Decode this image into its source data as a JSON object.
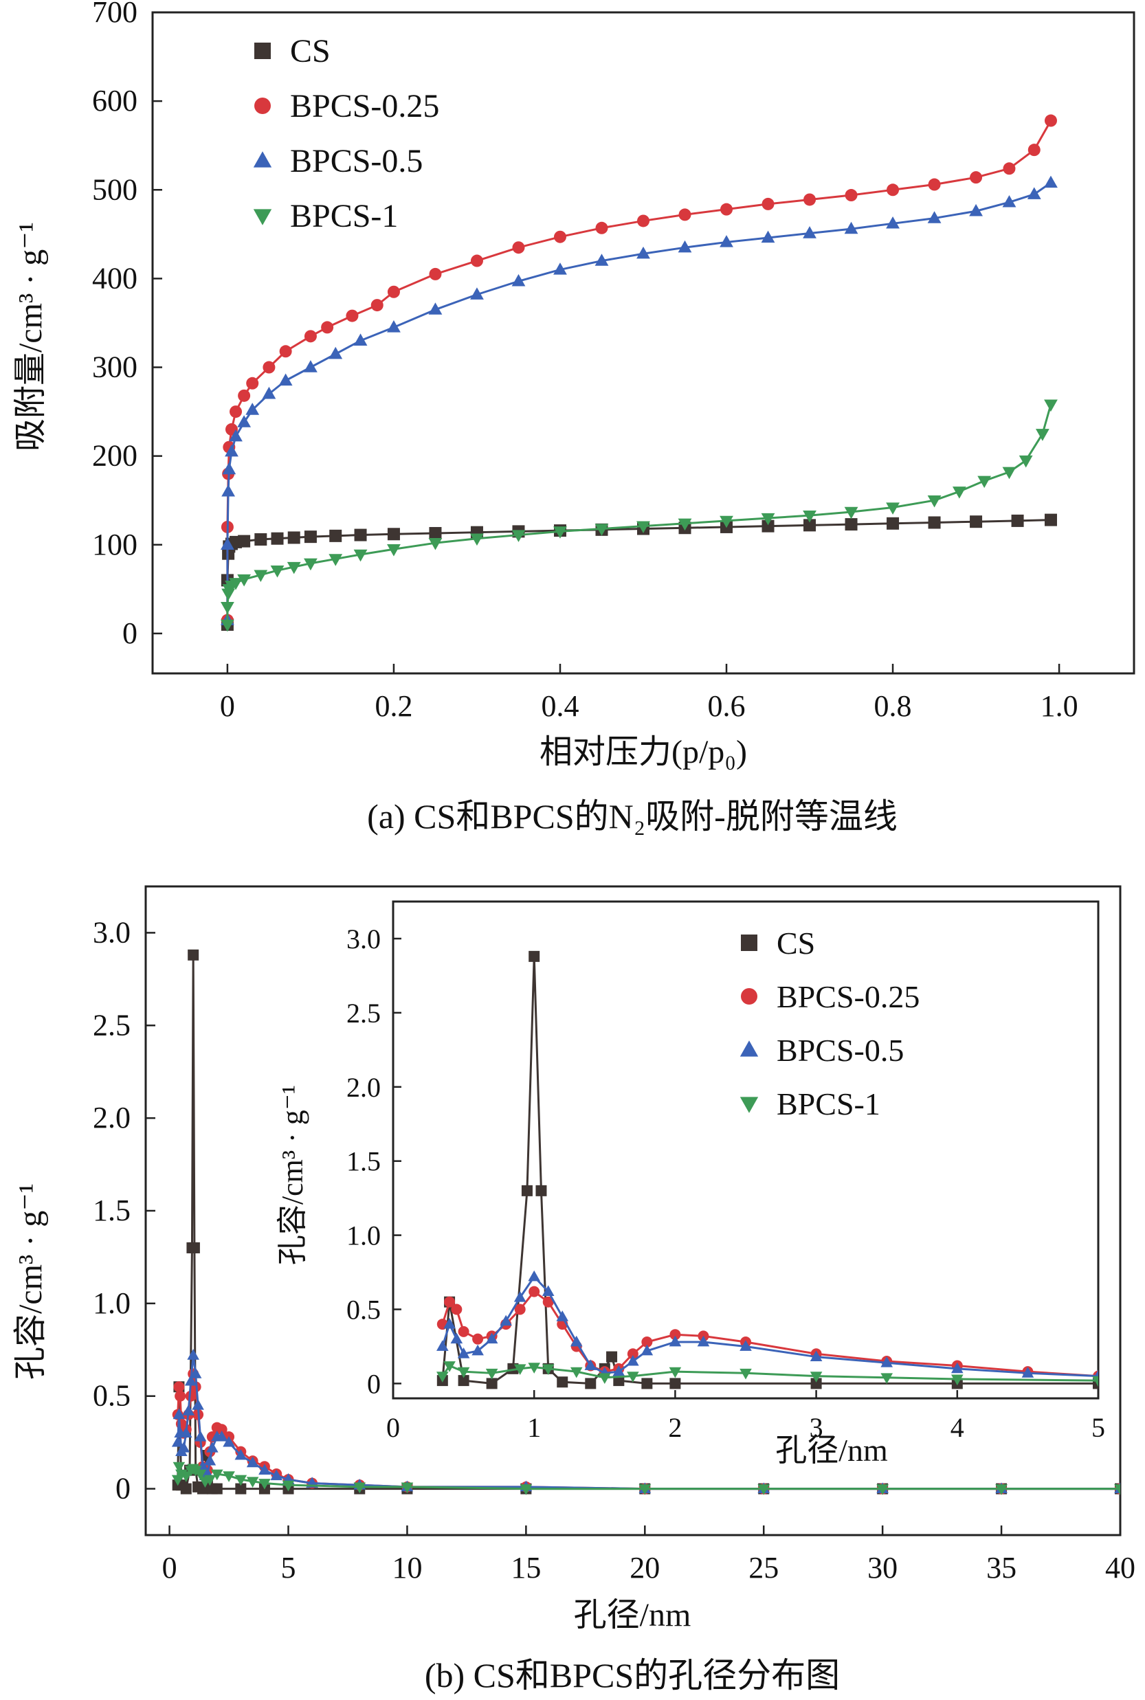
{
  "colors": {
    "CS": "#3e3532",
    "BPCS-0.25": "#d8383d",
    "BPCS-0.5": "#3b63b8",
    "BPCS-1": "#3d9b56"
  },
  "chart_data": [
    {
      "type": "line",
      "title": "",
      "caption": "(a) CS和BPCS的N₂吸附-脱附等温线",
      "xlabel": "相对压力(p/p₀)",
      "ylabel": "吸附量/cm³ · g⁻¹",
      "xlim": [
        -0.09,
        1.09
      ],
      "ylim": [
        -45,
        700
      ],
      "xticks": [
        0,
        0.2,
        0.4,
        0.6,
        0.8,
        1.0
      ],
      "xtick_labels": [
        "0",
        "0.2",
        "0.4",
        "0.6",
        "0.8",
        "1.0"
      ],
      "yticks": [
        0,
        100,
        200,
        300,
        400,
        500,
        600,
        700
      ],
      "ytick_labels": [
        "0",
        "100",
        "200",
        "300",
        "400",
        "500",
        "600",
        "700"
      ],
      "legend": [
        "CS",
        "BPCS-0.25",
        "BPCS-0.5",
        "BPCS-1"
      ],
      "legend_position": "top-left",
      "series": [
        {
          "name": "CS",
          "marker": "square",
          "x": [
            0.0,
            0.0,
            0.001,
            0.002,
            0.005,
            0.01,
            0.02,
            0.04,
            0.06,
            0.08,
            0.1,
            0.13,
            0.16,
            0.2,
            0.25,
            0.3,
            0.35,
            0.4,
            0.45,
            0.5,
            0.55,
            0.6,
            0.65,
            0.7,
            0.75,
            0.8,
            0.85,
            0.9,
            0.95,
            0.99
          ],
          "y": [
            10,
            60,
            90,
            98,
            101,
            103,
            104,
            106,
            107,
            108,
            109,
            110,
            111,
            112,
            113,
            114,
            115,
            116,
            117,
            118,
            119,
            120,
            121,
            122,
            123,
            124,
            125,
            126,
            127,
            128
          ]
        },
        {
          "name": "BPCS-0.25",
          "marker": "circle",
          "x": [
            0.0,
            0.0,
            0.001,
            0.002,
            0.005,
            0.01,
            0.02,
            0.03,
            0.05,
            0.07,
            0.1,
            0.12,
            0.15,
            0.18,
            0.2,
            0.25,
            0.3,
            0.35,
            0.4,
            0.45,
            0.5,
            0.55,
            0.6,
            0.65,
            0.7,
            0.75,
            0.8,
            0.85,
            0.9,
            0.94,
            0.97,
            0.99
          ],
          "y": [
            15,
            120,
            180,
            210,
            230,
            250,
            268,
            282,
            300,
            318,
            335,
            345,
            358,
            370,
            385,
            405,
            420,
            435,
            447,
            457,
            465,
            472,
            478,
            484,
            489,
            494,
            500,
            506,
            514,
            524,
            545,
            578
          ]
        },
        {
          "name": "BPCS-0.5",
          "marker": "triangle-up",
          "x": [
            0.0,
            0.0,
            0.001,
            0.002,
            0.005,
            0.01,
            0.02,
            0.03,
            0.05,
            0.07,
            0.1,
            0.13,
            0.16,
            0.2,
            0.25,
            0.3,
            0.35,
            0.4,
            0.45,
            0.5,
            0.55,
            0.6,
            0.65,
            0.7,
            0.75,
            0.8,
            0.85,
            0.9,
            0.94,
            0.97,
            0.99
          ],
          "y": [
            15,
            100,
            160,
            185,
            205,
            222,
            238,
            252,
            270,
            285,
            300,
            315,
            330,
            345,
            365,
            382,
            397,
            410,
            420,
            428,
            435,
            441,
            446,
            451,
            456,
            462,
            468,
            476,
            486,
            495,
            508
          ]
        },
        {
          "name": "BPCS-1",
          "marker": "triangle-down",
          "x": [
            0.0,
            0.0,
            0.001,
            0.002,
            0.005,
            0.01,
            0.02,
            0.04,
            0.06,
            0.08,
            0.1,
            0.13,
            0.16,
            0.2,
            0.25,
            0.3,
            0.35,
            0.4,
            0.45,
            0.5,
            0.55,
            0.6,
            0.65,
            0.7,
            0.75,
            0.8,
            0.85,
            0.88,
            0.91,
            0.94,
            0.96,
            0.98,
            0.99
          ],
          "y": [
            10,
            30,
            45,
            50,
            54,
            57,
            61,
            66,
            71,
            75,
            79,
            84,
            89,
            95,
            102,
            107,
            111,
            115,
            118,
            121,
            124,
            127,
            130,
            133,
            137,
            142,
            150,
            160,
            172,
            182,
            195,
            225,
            258
          ]
        }
      ]
    },
    {
      "type": "line",
      "title": "",
      "caption": "(b) CS和BPCS的孔径分布图",
      "xlabel": "孔径/nm",
      "ylabel": "孔容/cm³ · g⁻¹",
      "xlim": [
        -1,
        40
      ],
      "ylim": [
        -0.25,
        3.25
      ],
      "xticks": [
        0,
        5,
        10,
        15,
        20,
        25,
        30,
        35,
        40
      ],
      "xtick_labels": [
        "0",
        "5",
        "10",
        "15",
        "20",
        "25",
        "30",
        "35",
        "40"
      ],
      "yticks": [
        0,
        0.5,
        1.0,
        1.5,
        2.0,
        2.5,
        3.0
      ],
      "ytick_labels": [
        "0",
        "0.5",
        "1.0",
        "1.5",
        "2.0",
        "2.5",
        "3.0"
      ],
      "legend": [
        "CS",
        "BPCS-0.25",
        "BPCS-0.5",
        "BPCS-1"
      ],
      "legend_position": "inset top-right",
      "series": [
        {
          "name": "CS",
          "marker": "square",
          "x": [
            0.35,
            0.4,
            0.5,
            0.7,
            0.85,
            0.95,
            1.0,
            1.05,
            1.1,
            1.2,
            1.4,
            1.5,
            1.55,
            1.6,
            1.8,
            2.0,
            3.0,
            4.0,
            5.0,
            8.0,
            10.0,
            15.0,
            20.0,
            25.0,
            30.0,
            35.0,
            40.0
          ],
          "y": [
            0.02,
            0.55,
            0.02,
            0.0,
            0.1,
            1.3,
            2.88,
            1.3,
            0.1,
            0.01,
            0.0,
            0.1,
            0.18,
            0.02,
            0.0,
            0.0,
            0.0,
            0.0,
            0.0,
            0.0,
            0.0,
            0.0,
            0.0,
            0.0,
            0.0,
            0.0,
            0.0
          ]
        },
        {
          "name": "BPCS-0.25",
          "marker": "circle",
          "x": [
            0.35,
            0.4,
            0.45,
            0.5,
            0.6,
            0.7,
            0.8,
            0.9,
            1.0,
            1.1,
            1.2,
            1.3,
            1.4,
            1.5,
            1.6,
            1.7,
            1.8,
            2.0,
            2.2,
            2.5,
            3.0,
            3.5,
            4.0,
            4.5,
            5.0,
            6.0,
            8.0,
            10.0,
            15.0,
            20.0,
            25.0,
            30.0,
            35.0,
            40.0
          ],
          "y": [
            0.4,
            0.55,
            0.5,
            0.35,
            0.3,
            0.32,
            0.4,
            0.5,
            0.62,
            0.55,
            0.4,
            0.25,
            0.12,
            0.08,
            0.1,
            0.2,
            0.28,
            0.33,
            0.32,
            0.28,
            0.2,
            0.15,
            0.12,
            0.08,
            0.05,
            0.03,
            0.02,
            0.01,
            0.01,
            0.0,
            0.0,
            0.0,
            0.0,
            0.0
          ]
        },
        {
          "name": "BPCS-0.5",
          "marker": "triangle-up",
          "x": [
            0.35,
            0.4,
            0.45,
            0.5,
            0.6,
            0.7,
            0.8,
            0.9,
            1.0,
            1.1,
            1.2,
            1.3,
            1.4,
            1.5,
            1.6,
            1.7,
            1.8,
            2.0,
            2.2,
            2.5,
            3.0,
            3.5,
            4.0,
            4.5,
            5.0,
            6.0,
            8.0,
            10.0,
            15.0,
            20.0,
            25.0,
            30.0,
            35.0,
            40.0
          ],
          "y": [
            0.25,
            0.4,
            0.3,
            0.2,
            0.22,
            0.3,
            0.42,
            0.58,
            0.72,
            0.62,
            0.45,
            0.28,
            0.12,
            0.07,
            0.08,
            0.15,
            0.22,
            0.28,
            0.28,
            0.25,
            0.18,
            0.14,
            0.1,
            0.07,
            0.05,
            0.03,
            0.02,
            0.01,
            0.01,
            0.0,
            0.0,
            0.0,
            0.0,
            0.0
          ]
        },
        {
          "name": "BPCS-1",
          "marker": "triangle-down",
          "x": [
            0.35,
            0.4,
            0.5,
            0.7,
            0.9,
            1.0,
            1.1,
            1.3,
            1.5,
            1.7,
            2.0,
            2.5,
            3.0,
            3.5,
            4.0,
            5.0,
            8.0,
            10.0,
            15.0,
            20.0,
            25.0,
            30.0,
            35.0,
            40.0
          ],
          "y": [
            0.05,
            0.12,
            0.08,
            0.07,
            0.1,
            0.11,
            0.1,
            0.08,
            0.04,
            0.05,
            0.08,
            0.07,
            0.05,
            0.04,
            0.03,
            0.02,
            0.01,
            0.01,
            0.0,
            0.0,
            0.0,
            0.0,
            0.0,
            0.0
          ]
        }
      ],
      "inset": {
        "xlabel": "孔径/nm",
        "ylabel": "孔容/cm³ · g⁻¹",
        "xlim": [
          0,
          5
        ],
        "ylim": [
          -0.1,
          3.25
        ],
        "xticks": [
          0,
          1,
          2,
          3,
          4,
          5
        ],
        "xtick_labels": [
          "0",
          "1",
          "2",
          "3",
          "4",
          "5"
        ],
        "yticks": [
          0,
          0.5,
          1.0,
          1.5,
          2.0,
          2.5,
          3.0
        ],
        "ytick_labels": [
          "0",
          "0.5",
          "1.0",
          "1.5",
          "2.0",
          "2.5",
          "3.0"
        ],
        "legend": [
          "CS",
          "BPCS-0.25",
          "BPCS-0.5",
          "BPCS-1"
        ]
      }
    }
  ]
}
